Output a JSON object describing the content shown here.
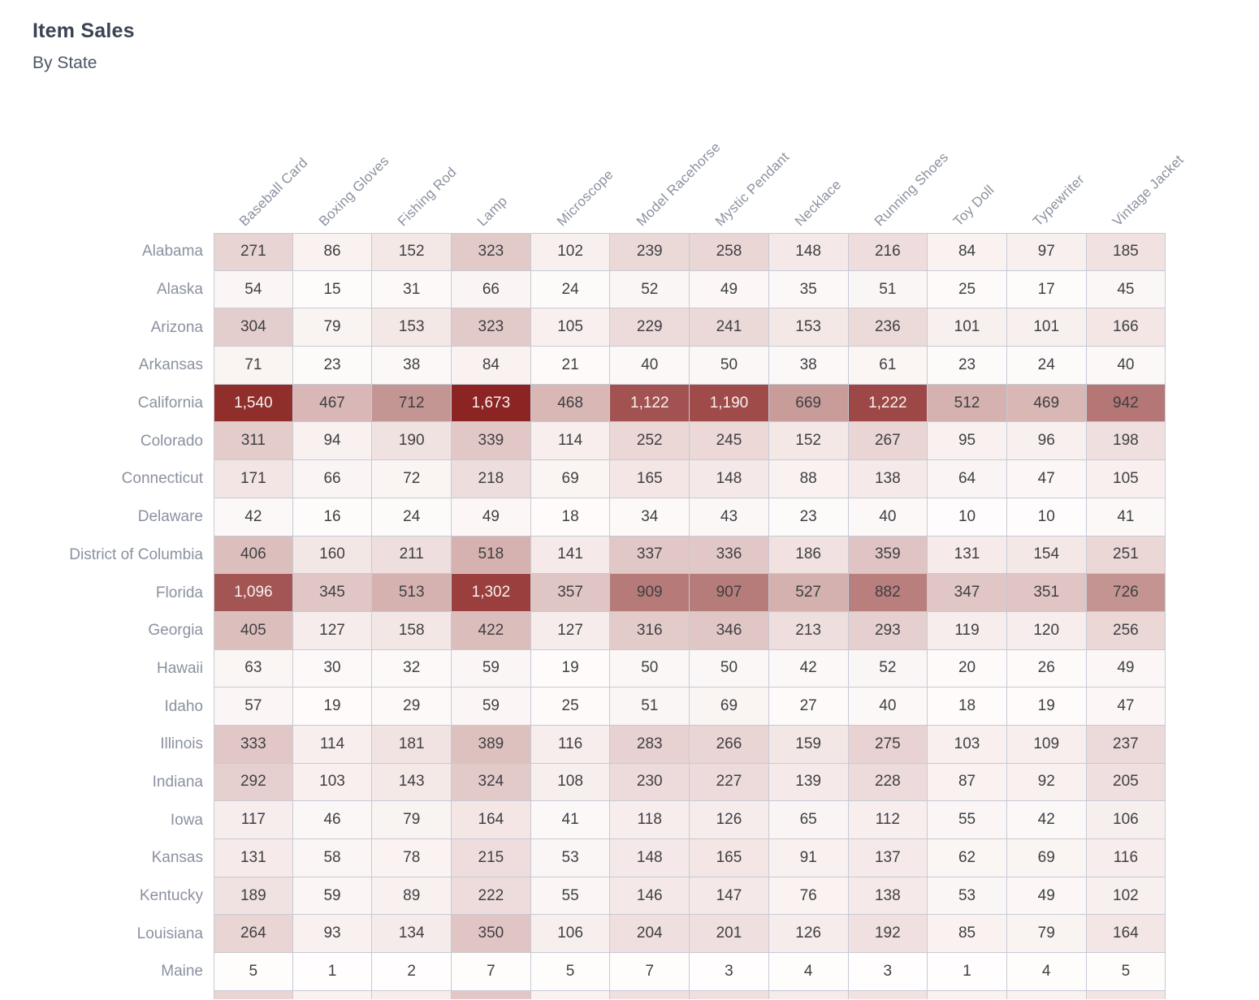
{
  "chart_data": {
    "type": "heatmap",
    "title": "Item Sales",
    "subtitle": "By State",
    "columns": [
      "Baseball Card",
      "Boxing Gloves",
      "Fishing Rod",
      "Lamp",
      "Microscope",
      "Model Racehorse",
      "Mystic Pendant",
      "Necklace",
      "Running Shoes",
      "Toy Doll",
      "Typewriter",
      "Vintage Jacket"
    ],
    "rows": [
      {
        "state": "Alabama",
        "values": [
          271,
          86,
          152,
          323,
          102,
          239,
          258,
          148,
          216,
          84,
          97,
          185
        ]
      },
      {
        "state": "Alaska",
        "values": [
          54,
          15,
          31,
          66,
          24,
          52,
          49,
          35,
          51,
          25,
          17,
          45
        ]
      },
      {
        "state": "Arizona",
        "values": [
          304,
          79,
          153,
          323,
          105,
          229,
          241,
          153,
          236,
          101,
          101,
          166
        ]
      },
      {
        "state": "Arkansas",
        "values": [
          71,
          23,
          38,
          84,
          21,
          40,
          50,
          38,
          61,
          23,
          24,
          40
        ]
      },
      {
        "state": "California",
        "values": [
          1540,
          467,
          712,
          1673,
          468,
          1122,
          1190,
          669,
          1222,
          512,
          469,
          942
        ]
      },
      {
        "state": "Colorado",
        "values": [
          311,
          94,
          190,
          339,
          114,
          252,
          245,
          152,
          267,
          95,
          96,
          198
        ]
      },
      {
        "state": "Connecticut",
        "values": [
          171,
          66,
          72,
          218,
          69,
          165,
          148,
          88,
          138,
          64,
          47,
          105
        ]
      },
      {
        "state": "Delaware",
        "values": [
          42,
          16,
          24,
          49,
          18,
          34,
          43,
          23,
          40,
          10,
          10,
          41
        ]
      },
      {
        "state": "District of Columbia",
        "values": [
          406,
          160,
          211,
          518,
          141,
          337,
          336,
          186,
          359,
          131,
          154,
          251
        ]
      },
      {
        "state": "Florida",
        "values": [
          1096,
          345,
          513,
          1302,
          357,
          909,
          907,
          527,
          882,
          347,
          351,
          726
        ]
      },
      {
        "state": "Georgia",
        "values": [
          405,
          127,
          158,
          422,
          127,
          316,
          346,
          213,
          293,
          119,
          120,
          256
        ]
      },
      {
        "state": "Hawaii",
        "values": [
          63,
          30,
          32,
          59,
          19,
          50,
          50,
          42,
          52,
          20,
          26,
          49
        ]
      },
      {
        "state": "Idaho",
        "values": [
          57,
          19,
          29,
          59,
          25,
          51,
          69,
          27,
          40,
          18,
          19,
          47
        ]
      },
      {
        "state": "Illinois",
        "values": [
          333,
          114,
          181,
          389,
          116,
          283,
          266,
          159,
          275,
          103,
          109,
          237
        ]
      },
      {
        "state": "Indiana",
        "values": [
          292,
          103,
          143,
          324,
          108,
          230,
          227,
          139,
          228,
          87,
          92,
          205
        ]
      },
      {
        "state": "Iowa",
        "values": [
          117,
          46,
          79,
          164,
          41,
          118,
          126,
          65,
          112,
          55,
          42,
          106
        ]
      },
      {
        "state": "Kansas",
        "values": [
          131,
          58,
          78,
          215,
          53,
          148,
          165,
          91,
          137,
          62,
          69,
          116
        ]
      },
      {
        "state": "Kentucky",
        "values": [
          189,
          59,
          89,
          222,
          55,
          146,
          147,
          76,
          138,
          53,
          49,
          102
        ]
      },
      {
        "state": "Louisiana",
        "values": [
          264,
          93,
          134,
          350,
          106,
          204,
          201,
          126,
          192,
          85,
          79,
          164
        ]
      },
      {
        "state": "Maine",
        "values": [
          5,
          1,
          2,
          7,
          5,
          7,
          3,
          4,
          3,
          1,
          4,
          5
        ]
      }
    ],
    "value_domain": [
      0,
      1673
    ],
    "number_format": "comma-thousands",
    "legend": "none",
    "layout": {
      "column_header_rotation_deg": -45,
      "row_labels_position": "left"
    }
  },
  "style": {
    "color_scale_anchors": [
      [
        0.0,
        "#fffdfd"
      ],
      [
        0.051,
        "#f9f2f1"
      ],
      [
        0.091,
        "#f4e8e7"
      ],
      [
        0.162,
        "#e8d4d3"
      ],
      [
        0.206,
        "#e0c6c5"
      ],
      [
        0.31,
        "#d5b1af"
      ],
      [
        0.426,
        "#c49693"
      ],
      [
        0.563,
        "#b47775"
      ],
      [
        0.655,
        "#a35553"
      ],
      [
        0.778,
        "#9a3f3d"
      ],
      [
        1.0,
        "#8b2423"
      ]
    ],
    "light_text_threshold": 0.6,
    "cell_text_dark": "#3f3f42",
    "cell_text_light": "#f7f2f1",
    "grid_border": "#c6cad4",
    "label_text": "#8b91a0",
    "title_text": "#3b4353",
    "subtitle_text": "#4d5565",
    "partial_next_row_levels": [
      0.16,
      0.05,
      0.07,
      0.2,
      0.05,
      0.12,
      0.12,
      0.08,
      0.11,
      0.05,
      0.05,
      0.1
    ]
  }
}
